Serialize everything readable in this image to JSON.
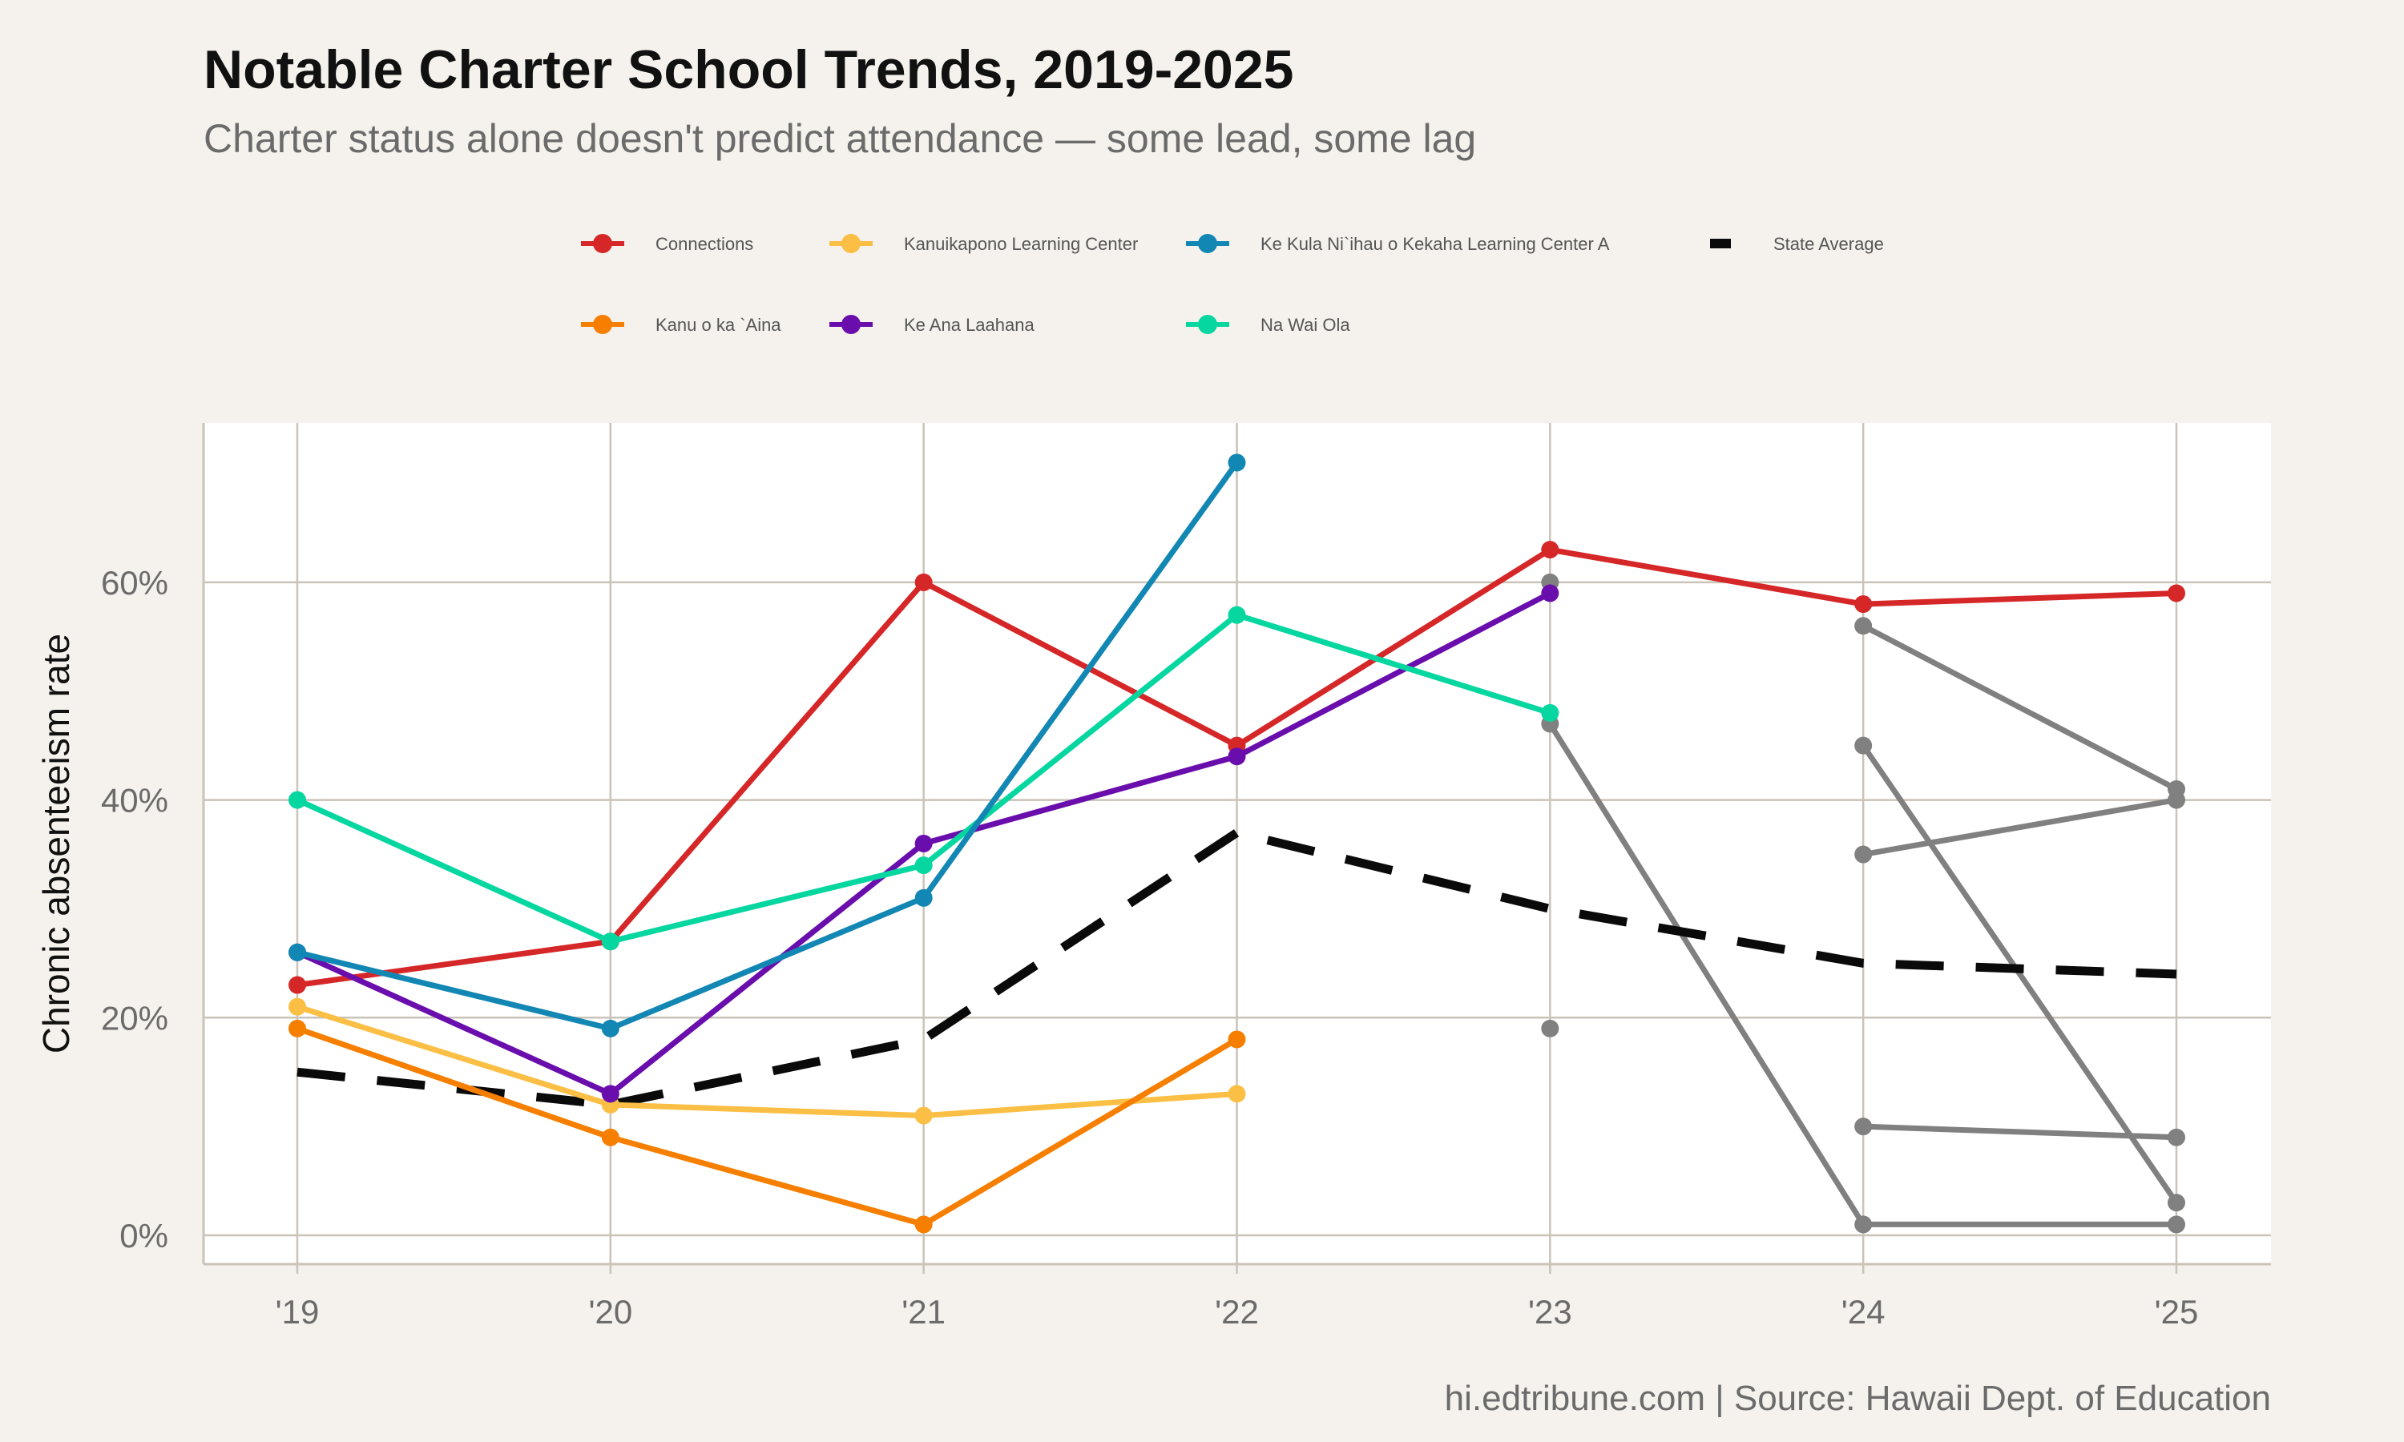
{
  "chart_data": {
    "type": "line",
    "title": "Notable Charter School Trends, 2019-2025",
    "subtitle": "Charter status alone doesn't predict attendance — some lead, some lag",
    "caption": "hi.edtribune.com | Source: Hawaii Dept. of Education",
    "xlabel": "",
    "ylabel": "Chronic absenteeism rate",
    "x": [
      "'19",
      "'20",
      "'21",
      "'22",
      "'23",
      "'24",
      "'25"
    ],
    "yticks": [
      "0%",
      "20%",
      "40%",
      "60%"
    ],
    "ylim": [
      0,
      71
    ],
    "grid": true,
    "legend_position": "top",
    "series": [
      {
        "name": "Connections",
        "color": "#d62728",
        "values": [
          23,
          27,
          60,
          45,
          63,
          58,
          59
        ]
      },
      {
        "name": "Kanuikapono Learning Center",
        "color": "#fbbf45",
        "values": [
          21,
          12,
          11,
          13,
          null,
          null,
          null
        ]
      },
      {
        "name": "Ke Kula Ni`ihau o Kekaha Learning Center A",
        "color": "#1287b3",
        "values": [
          26,
          19,
          31,
          71,
          null,
          null,
          null
        ]
      },
      {
        "name": "State Average",
        "color": "#0a0a0a",
        "dashed": true,
        "values": [
          15,
          12,
          18,
          37,
          30,
          25,
          24
        ]
      },
      {
        "name": "Kanu o ka `Aina",
        "color": "#f77f00",
        "values": [
          19,
          9,
          1,
          18,
          null,
          null,
          null
        ]
      },
      {
        "name": "Ke Ana Laahana",
        "color": "#6a0dad",
        "values": [
          26,
          13,
          36,
          44,
          59,
          null,
          null
        ]
      },
      {
        "name": "Na Wai Ola",
        "color": "#06d6a0",
        "values": [
          40,
          27,
          34,
          57,
          48,
          null,
          null
        ]
      }
    ],
    "other_series": {
      "color": "#808080",
      "lines": [
        [
          null,
          null,
          null,
          null,
          60,
          null,
          null
        ],
        [
          null,
          null,
          null,
          null,
          47,
          1,
          1
        ],
        [
          null,
          null,
          null,
          null,
          19,
          null,
          null
        ],
        [
          null,
          null,
          null,
          null,
          null,
          56,
          41
        ],
        [
          null,
          null,
          null,
          null,
          null,
          45,
          3
        ],
        [
          null,
          null,
          null,
          null,
          null,
          35,
          40
        ],
        [
          null,
          null,
          null,
          null,
          null,
          10,
          9
        ]
      ]
    }
  }
}
